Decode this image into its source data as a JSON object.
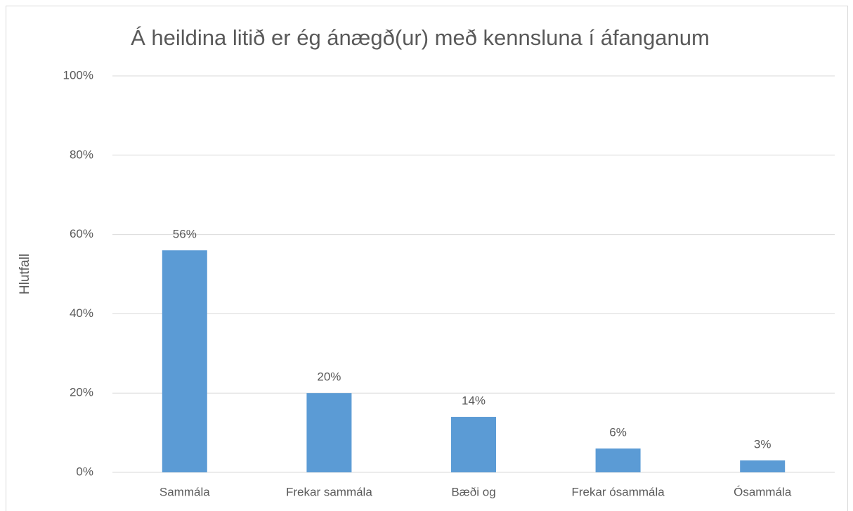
{
  "chart_data": {
    "type": "bar",
    "title": "Á heildina litið er ég ánægð(ur) með kennsluna í áfanganum",
    "y_label": "Hlutfall",
    "categories": [
      "Sammála",
      "Frekar sammála",
      "Bæði og",
      "Frekar ósammála",
      "Ósammála"
    ],
    "values": [
      56,
      20,
      14,
      6,
      3
    ],
    "value_labels": [
      "56%",
      "20%",
      "14%",
      "6%",
      "3%"
    ],
    "color": "#5b9bd5",
    "ylim": [
      0,
      100
    ],
    "yticks": [
      {
        "value": 0,
        "label": "0%"
      },
      {
        "value": 20,
        "label": "20%"
      },
      {
        "value": 40,
        "label": "40%"
      },
      {
        "value": 60,
        "label": "60%"
      },
      {
        "value": 80,
        "label": "80%"
      },
      {
        "value": 100,
        "label": "100%"
      }
    ],
    "grid": true
  }
}
